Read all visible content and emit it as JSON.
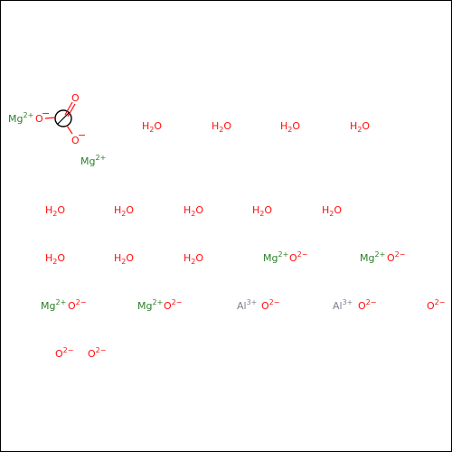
{
  "colors": {
    "oxygen": "#ff0d0d",
    "magnesium": "#2a802a",
    "aluminium": "#808090",
    "carbon": "#000000",
    "border": "#000000"
  },
  "carbonate": {
    "charge_minus": "−",
    "o_double": "O",
    "o_left": "O",
    "o_bottom": "O"
  },
  "species": [
    {
      "el": "Mg",
      "sup": "2+",
      "kind": "mg"
    },
    {
      "el": "Mg",
      "sup": "2+",
      "kind": "mg"
    },
    {
      "el": "H",
      "sub": "2",
      "tail": "O",
      "kind": "h2o"
    },
    {
      "el": "H",
      "sub": "2",
      "tail": "O",
      "kind": "h2o"
    },
    {
      "el": "H",
      "sub": "2",
      "tail": "O",
      "kind": "h2o"
    },
    {
      "el": "H",
      "sub": "2",
      "tail": "O",
      "kind": "h2o"
    },
    {
      "el": "H",
      "sub": "2",
      "tail": "O",
      "kind": "h2o"
    },
    {
      "el": "H",
      "sub": "2",
      "tail": "O",
      "kind": "h2o"
    },
    {
      "el": "H",
      "sub": "2",
      "tail": "O",
      "kind": "h2o"
    },
    {
      "el": "H",
      "sub": "2",
      "tail": "O",
      "kind": "h2o"
    },
    {
      "el": "H",
      "sub": "2",
      "tail": "O",
      "kind": "h2o"
    },
    {
      "el": "H",
      "sub": "2",
      "tail": "O",
      "kind": "h2o"
    },
    {
      "el": "H",
      "sub": "2",
      "tail": "O",
      "kind": "h2o"
    },
    {
      "el": "H",
      "sub": "2",
      "tail": "O",
      "kind": "h2o"
    },
    {
      "el": "Mg",
      "sup": "2+",
      "kind": "mg"
    },
    {
      "el": "O",
      "sup": "2−",
      "kind": "ox"
    },
    {
      "el": "Mg",
      "sup": "2+",
      "kind": "mg"
    },
    {
      "el": "O",
      "sup": "2−",
      "kind": "ox"
    },
    {
      "el": "Mg",
      "sup": "2+",
      "kind": "mg"
    },
    {
      "el": "O",
      "sup": "2−",
      "kind": "ox"
    },
    {
      "el": "Mg",
      "sup": "2+",
      "kind": "mg"
    },
    {
      "el": "O",
      "sup": "2−",
      "kind": "ox"
    },
    {
      "el": "Al",
      "sup": "3+",
      "kind": "al"
    },
    {
      "el": "O",
      "sup": "2−",
      "kind": "ox"
    },
    {
      "el": "Al",
      "sup": "3+",
      "kind": "al"
    },
    {
      "el": "O",
      "sup": "2−",
      "kind": "ox"
    },
    {
      "el": "O",
      "sup": "2−",
      "kind": "ox"
    },
    {
      "el": "O",
      "sup": "2−",
      "kind": "ox"
    },
    {
      "el": "O",
      "sup": "2−",
      "kind": "ox"
    }
  ]
}
